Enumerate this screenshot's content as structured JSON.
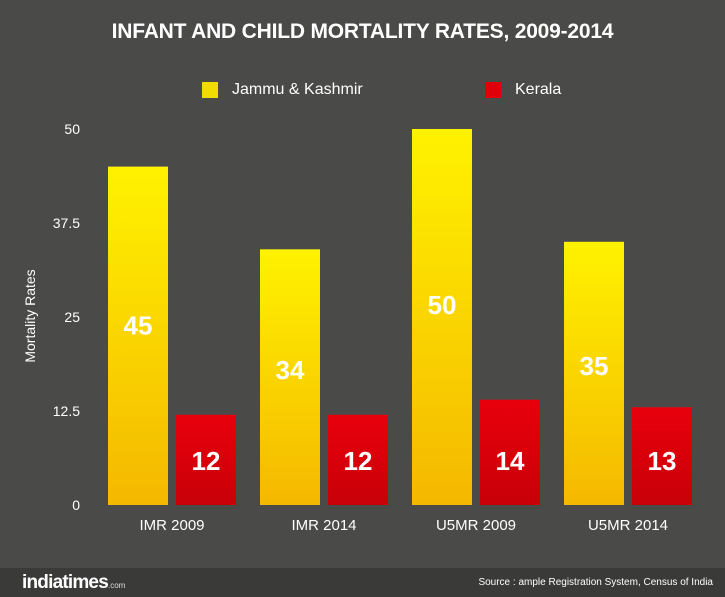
{
  "chart_data": {
    "type": "bar",
    "title": "INFANT AND CHILD MORTALITY RATES, 2009-2014",
    "xlabel": "",
    "ylabel": "Mortality Rates",
    "categories": [
      "IMR 2009",
      "IMR 2014",
      "U5MR 2009",
      "U5MR 2014"
    ],
    "series": [
      {
        "name": "Jammu & Kashmir",
        "values": [
          45,
          34,
          50,
          35
        ],
        "color": "#f2dc00"
      },
      {
        "name": "Kerala",
        "values": [
          12,
          12,
          14,
          13
        ],
        "color": "#e0000a"
      }
    ],
    "ylim": [
      0,
      50
    ],
    "yticks": [
      "0",
      "12.5",
      "25",
      "37.5",
      "50"
    ],
    "data_labels": [
      [
        "45",
        "34",
        "50",
        "35"
      ],
      [
        "12",
        "12",
        "14",
        "13"
      ]
    ],
    "legend_position": "top",
    "grid": false
  },
  "footer": {
    "brand": "indiatimes",
    "brand_suffix": ".com",
    "source": "Source : ample Registration System, Census of India"
  },
  "colors": {
    "background": "#4a4a48",
    "footer_background": "#3a3a39",
    "text": "#ffffff"
  }
}
